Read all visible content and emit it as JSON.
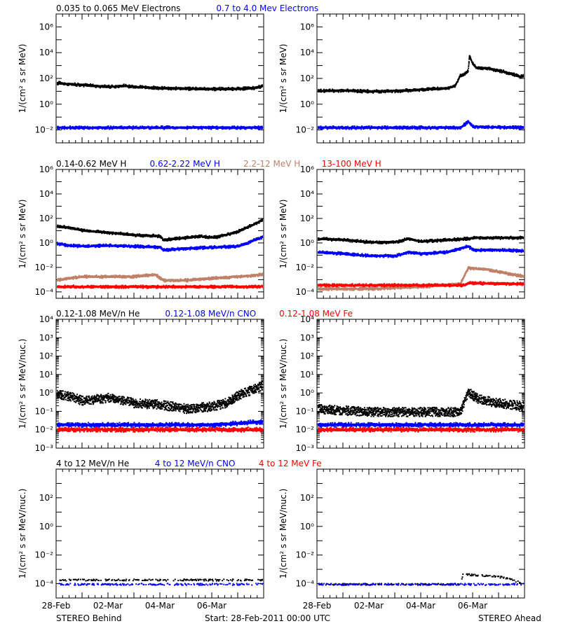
{
  "chart_data": [
    {
      "type": "scatter",
      "row": 1,
      "spacecraft": "STEREO Behind",
      "ylabel": "1/(cm² s sr MeV)",
      "yscale": "log",
      "ylim": [
        0.001,
        10000000
      ],
      "ytick_exponents": [
        -2,
        0,
        2,
        4,
        6
      ],
      "xlim": [
        0,
        8
      ],
      "series": [
        {
          "name": "0.035 to 0.065 MeV Electrons",
          "color": "#000000",
          "values": [
            [
              0,
              50
            ],
            [
              0.5,
              40
            ],
            [
              1,
              35
            ],
            [
              2,
              25
            ],
            [
              2.6,
              30
            ],
            [
              3,
              25
            ],
            [
              4,
              20
            ],
            [
              5,
              18
            ],
            [
              6,
              17
            ],
            [
              7,
              18
            ],
            [
              7.6,
              20
            ],
            [
              8,
              30
            ]
          ]
        },
        {
          "name": "0.7 to 4.0 Mev Electrons",
          "color": "#0000ff",
          "values": [
            [
              0,
              0.017
            ],
            [
              2,
              0.017
            ],
            [
              4,
              0.017
            ],
            [
              6,
              0.017
            ],
            [
              8,
              0.017
            ]
          ]
        }
      ]
    },
    {
      "type": "scatter",
      "row": 1,
      "spacecraft": "STEREO Ahead",
      "ylabel": "1/(cm² s sr MeV)",
      "yscale": "log",
      "ylim": [
        0.001,
        10000000
      ],
      "ytick_exponents": [
        -2,
        0,
        2,
        4,
        6
      ],
      "xlim": [
        0,
        8
      ],
      "series": [
        {
          "name": "0.035 to 0.065 MeV Electrons",
          "color": "#000000",
          "values": [
            [
              0,
              12
            ],
            [
              1,
              13
            ],
            [
              2,
              11
            ],
            [
              3,
              12
            ],
            [
              4,
              15
            ],
            [
              5,
              20
            ],
            [
              5.3,
              30
            ],
            [
              5.5,
              200
            ],
            [
              5.6,
              200
            ],
            [
              5.8,
              400
            ],
            [
              5.85,
              6000
            ],
            [
              5.95,
              2000
            ],
            [
              6.1,
              800
            ],
            [
              6.5,
              700
            ],
            [
              7,
              450
            ],
            [
              7.5,
              250
            ],
            [
              7.8,
              150
            ],
            [
              8,
              200
            ]
          ]
        },
        {
          "name": "0.7 to 4.0 Mev Electrons",
          "color": "#0000ff",
          "values": [
            [
              0,
              0.017
            ],
            [
              2,
              0.017
            ],
            [
              4,
              0.017
            ],
            [
              5.5,
              0.017
            ],
            [
              5.8,
              0.05
            ],
            [
              6,
              0.02
            ],
            [
              8,
              0.017
            ]
          ]
        }
      ]
    },
    {
      "type": "scatter",
      "row": 2,
      "spacecraft": "STEREO Behind",
      "ylabel": "1/(cm² s sr MeV)",
      "yscale": "log",
      "ylim": [
        3e-05,
        1000000
      ],
      "ytick_exponents": [
        -4,
        -2,
        0,
        2,
        4,
        6
      ],
      "xlim": [
        0,
        8
      ],
      "series": [
        {
          "name": "0.14-0.62 MeV H",
          "color": "#000000",
          "values": [
            [
              0,
              25
            ],
            [
              0.5,
              20
            ],
            [
              1,
              12
            ],
            [
              2,
              8
            ],
            [
              3,
              5
            ],
            [
              4,
              4
            ],
            [
              4.1,
              2
            ],
            [
              5,
              3
            ],
            [
              5.5,
              4
            ],
            [
              6,
              3
            ],
            [
              6.5,
              5
            ],
            [
              7,
              10
            ],
            [
              7.5,
              30
            ],
            [
              8,
              100
            ]
          ]
        },
        {
          "name": "0.62-2.22 MeV H",
          "color": "#0000ff",
          "values": [
            [
              0,
              1
            ],
            [
              0.5,
              0.7
            ],
            [
              1,
              0.6
            ],
            [
              2,
              0.7
            ],
            [
              3,
              0.6
            ],
            [
              4,
              0.5
            ],
            [
              4.1,
              0.3
            ],
            [
              5,
              0.4
            ],
            [
              6,
              0.5
            ],
            [
              7,
              0.6
            ],
            [
              7.5,
              1.5
            ],
            [
              8,
              4
            ]
          ]
        },
        {
          "name": "2.2-12 MeV H",
          "color": "#c08068",
          "values": [
            [
              0,
              0.001
            ],
            [
              0.5,
              0.0015
            ],
            [
              1,
              0.002
            ],
            [
              2,
              0.002
            ],
            [
              3,
              0.002
            ],
            [
              3.8,
              0.003
            ],
            [
              4.1,
              0.001
            ],
            [
              5,
              0.001
            ],
            [
              6,
              0.0015
            ],
            [
              7,
              0.002
            ],
            [
              8,
              0.003
            ]
          ]
        },
        {
          "name": "13-100 MeV H",
          "color": "#ff0000",
          "values": [
            [
              0,
              0.0003
            ],
            [
              2,
              0.0003
            ],
            [
              4,
              0.0003
            ],
            [
              6,
              0.0003
            ],
            [
              8,
              0.0003
            ]
          ]
        }
      ]
    },
    {
      "type": "scatter",
      "row": 2,
      "spacecraft": "STEREO Ahead",
      "ylabel": "1/(cm² s sr MeV)",
      "yscale": "log",
      "ylim": [
        3e-05,
        1000000
      ],
      "ytick_exponents": [
        -4,
        -2,
        0,
        2,
        4,
        6
      ],
      "xlim": [
        0,
        8
      ],
      "series": [
        {
          "name": "0.14-0.62 MeV H",
          "color": "#000000",
          "values": [
            [
              0,
              2.5
            ],
            [
              1,
              2
            ],
            [
              2,
              1.3
            ],
            [
              3,
              1.3
            ],
            [
              3.5,
              2.5
            ],
            [
              4,
              1.5
            ],
            [
              5,
              2
            ],
            [
              5.8,
              2.5
            ],
            [
              6,
              3
            ],
            [
              7,
              3
            ],
            [
              8,
              3
            ]
          ]
        },
        {
          "name": "0.62-2.22 MeV H",
          "color": "#0000ff",
          "values": [
            [
              0,
              0.2
            ],
            [
              1,
              0.15
            ],
            [
              2,
              0.1
            ],
            [
              3,
              0.1
            ],
            [
              3.5,
              0.2
            ],
            [
              4,
              0.15
            ],
            [
              5,
              0.2
            ],
            [
              5.8,
              0.6
            ],
            [
              6,
              0.3
            ],
            [
              7,
              0.3
            ],
            [
              8,
              0.25
            ]
          ]
        },
        {
          "name": "2.2-12 MeV H",
          "color": "#c08068",
          "values": [
            [
              0,
              0.0002
            ],
            [
              2,
              0.0002
            ],
            [
              4,
              0.0003
            ],
            [
              5.5,
              0.0005
            ],
            [
              5.8,
              0.01
            ],
            [
              6.5,
              0.008
            ],
            [
              7.5,
              0.003
            ],
            [
              8,
              0.002
            ]
          ]
        },
        {
          "name": "13-100 MeV H",
          "color": "#ff0000",
          "values": [
            [
              0,
              0.0004
            ],
            [
              2,
              0.0004
            ],
            [
              4,
              0.0004
            ],
            [
              5.7,
              0.0004
            ],
            [
              5.8,
              0.0006
            ],
            [
              8,
              0.0005
            ]
          ]
        }
      ]
    },
    {
      "type": "scatter",
      "row": 3,
      "spacecraft": "STEREO Behind",
      "ylabel": "1/(cm² s sr MeV/nuc.)",
      "yscale": "log",
      "ylim": [
        0.001,
        10000
      ],
      "ytick_exponents": [
        -3,
        -2,
        -1,
        0,
        1,
        2,
        3,
        4
      ],
      "xlim": [
        0,
        8
      ],
      "series": [
        {
          "name": "0.12-1.08 MeV/n He",
          "color": "#000000",
          "values": [
            [
              0,
              1
            ],
            [
              0.5,
              0.7
            ],
            [
              1,
              0.4
            ],
            [
              2,
              0.6
            ],
            [
              3,
              0.3
            ],
            [
              4,
              0.25
            ],
            [
              5,
              0.15
            ],
            [
              6,
              0.2
            ],
            [
              6.5,
              0.3
            ],
            [
              7,
              0.8
            ],
            [
              7.5,
              1.5
            ],
            [
              8,
              3
            ]
          ]
        },
        {
          "name": "0.12-1.08 MeV/n CNO",
          "color": "#0000ff",
          "values": [
            [
              0,
              0.02
            ],
            [
              2,
              0.02
            ],
            [
              4,
              0.02
            ],
            [
              6,
              0.02
            ],
            [
              8,
              0.03
            ]
          ]
        },
        {
          "name": "0.12-1.08 MeV Fe",
          "color": "#ff0000",
          "values": [
            [
              0,
              0.011
            ],
            [
              2,
              0.011
            ],
            [
              4,
              0.011
            ],
            [
              6,
              0.011
            ],
            [
              8,
              0.011
            ]
          ]
        }
      ]
    },
    {
      "type": "scatter",
      "row": 3,
      "spacecraft": "STEREO Ahead",
      "ylabel": "1/(cm² s sr MeV/nuc.)",
      "yscale": "log",
      "ylim": [
        0.001,
        10000
      ],
      "ytick_exponents": [
        -3,
        -2,
        -1,
        0,
        1,
        2,
        3,
        4
      ],
      "xlim": [
        0,
        8
      ],
      "series": [
        {
          "name": "0.12-1.08 MeV/n He",
          "color": "#000000",
          "values": [
            [
              0,
              0.15
            ],
            [
              1,
              0.12
            ],
            [
              2,
              0.1
            ],
            [
              4,
              0.1
            ],
            [
              5.5,
              0.1
            ],
            [
              5.8,
              1.2
            ],
            [
              6.2,
              0.5
            ],
            [
              7,
              0.3
            ],
            [
              8,
              0.2
            ]
          ]
        },
        {
          "name": "0.12-1.08 MeV/n CNO",
          "color": "#0000ff",
          "values": [
            [
              0,
              0.02
            ],
            [
              2,
              0.02
            ],
            [
              4,
              0.02
            ],
            [
              6,
              0.02
            ],
            [
              8,
              0.02
            ]
          ]
        },
        {
          "name": "0.12-1.08 MeV Fe",
          "color": "#ff0000",
          "values": [
            [
              0,
              0.011
            ],
            [
              2,
              0.011
            ],
            [
              4,
              0.011
            ],
            [
              6,
              0.011
            ],
            [
              8,
              0.011
            ]
          ]
        }
      ]
    },
    {
      "type": "scatter",
      "row": 4,
      "spacecraft": "STEREO Behind",
      "ylabel": "1/(cm² s sr MeV/nuc.)",
      "yscale": "log",
      "ylim": [
        1e-05,
        10000
      ],
      "ytick_exponents": [
        -4,
        -2,
        0,
        2
      ],
      "xlim": [
        0,
        8
      ],
      "xticks": [
        "28-Feb",
        "02-Mar",
        "04-Mar",
        "06-Mar"
      ],
      "series": [
        {
          "name": "4 to 12 MeV/n He",
          "color": "#000000",
          "values": [
            [
              0,
              0.0002
            ],
            [
              2,
              0.0002
            ],
            [
              4,
              0.0002
            ],
            [
              6,
              0.0002
            ],
            [
              8,
              0.0002
            ]
          ]
        },
        {
          "name": "4 to 12 MeV/n CNO",
          "color": "#0000ff",
          "values": [
            [
              0,
              0.0001
            ],
            [
              4,
              0.0001
            ],
            [
              8,
              0.0001
            ]
          ]
        },
        {
          "name": "4 to 12 MeV Fe",
          "color": "#ff0000",
          "values": []
        }
      ]
    },
    {
      "type": "scatter",
      "row": 4,
      "spacecraft": "STEREO Ahead",
      "ylabel": "1/(cm² s sr MeV/nuc.)",
      "yscale": "log",
      "ylim": [
        1e-05,
        10000
      ],
      "ytick_exponents": [
        -4,
        -2,
        0,
        2
      ],
      "xlim": [
        0,
        8
      ],
      "xticks": [
        "28-Feb",
        "02-Mar",
        "04-Mar",
        "06-Mar"
      ],
      "series": [
        {
          "name": "4 to 12 MeV/n He",
          "color": "#000000",
          "values": [
            [
              0,
              0.0001
            ],
            [
              4,
              0.0001
            ],
            [
              5.5,
              0.0001
            ],
            [
              5.6,
              0.0005
            ],
            [
              6.5,
              0.0004
            ],
            [
              7.2,
              0.0003
            ],
            [
              8,
              0.0001
            ]
          ]
        },
        {
          "name": "4 to 12 MeV/n CNO",
          "color": "#0000ff",
          "values": [
            [
              0,
              0.0001
            ],
            [
              4,
              0.0001
            ],
            [
              8,
              0.0001
            ]
          ]
        },
        {
          "name": "4 to 12 MeV Fe",
          "color": "#ff0000",
          "values": [
            [
              6.5,
              1e-05
            ]
          ]
        }
      ]
    }
  ],
  "footer": {
    "behind_label": "STEREO Behind",
    "ahead_label": "STEREO Ahead",
    "start_label": "Start: 28-Feb-2011 00:00 UTC"
  }
}
